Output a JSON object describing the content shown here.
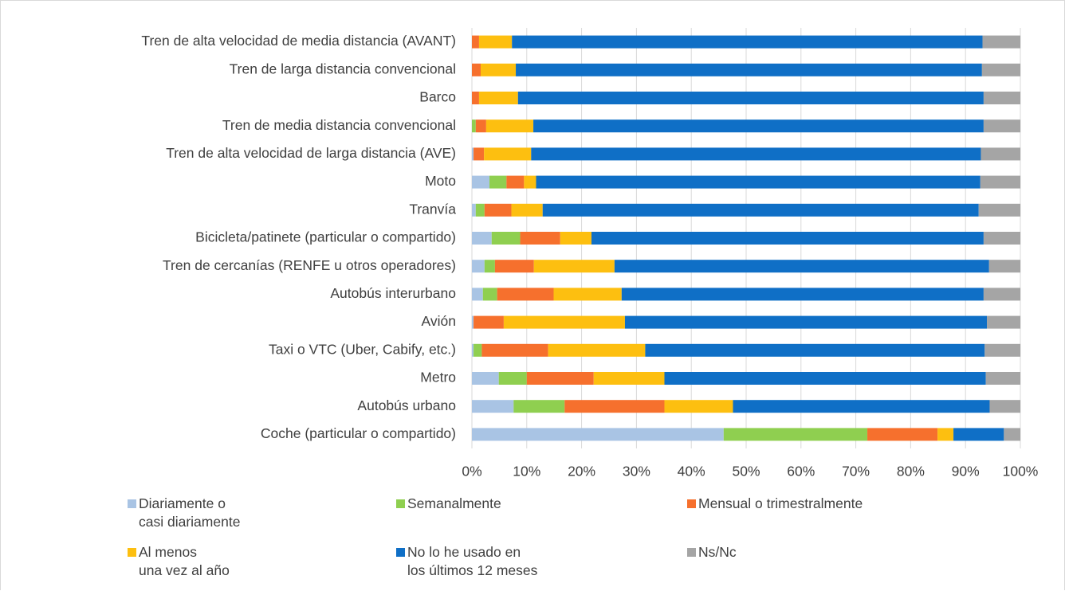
{
  "chart_data": {
    "type": "stacked_barh",
    "categories": [
      "Tren de alta velocidad de media distancia (AVANT)",
      "Tren de larga distancia convencional",
      "Barco",
      "Tren de media distancia convencional",
      "Tren de alta velocidad de larga distancia (AVE)",
      "Moto",
      "Tranvía",
      "Bicicleta/patinete (particular o compartido)",
      "Tren de cercanías (RENFE u otros operadores)",
      "Autobús interurbano",
      "Avión",
      "Taxi o VTC (Uber, Cabify, etc.)",
      "Metro",
      "Autobús urbano",
      "Coche (particular o compartido)"
    ],
    "series": [
      {
        "name": "Diariamente o\ncasi diariamente",
        "color": "#a9c4e4",
        "values": [
          0,
          0,
          0,
          0,
          0.3,
          3.2,
          0.7,
          3.6,
          2.3,
          2.0,
          0.3,
          0.3,
          4.9,
          7.6,
          45.9
        ]
      },
      {
        "name": "Semanalmente",
        "color": "#8fcf50",
        "values": [
          0,
          0,
          0,
          0.7,
          0,
          3.1,
          1.6,
          5.2,
          1.9,
          2.6,
          0,
          1.5,
          5.1,
          9.3,
          26.2
        ]
      },
      {
        "name": "Mensual o trimestralmente",
        "color": "#f6702d",
        "values": [
          1.3,
          1.6,
          1.3,
          1.9,
          1.9,
          3.2,
          4.9,
          7.3,
          7.1,
          10.3,
          5.5,
          12.1,
          12.2,
          18.2,
          12.8
        ]
      },
      {
        "name": "Al menos\nuna vez al año",
        "color": "#fdbf10",
        "values": [
          6.0,
          6.4,
          7.1,
          8.6,
          8.6,
          2.2,
          5.7,
          5.7,
          14.7,
          12.4,
          22.1,
          17.7,
          12.9,
          12.5,
          2.9
        ]
      },
      {
        "name": "No lo he usado en\nlos últimos 12 meses",
        "color": "#0f6fc6",
        "values": [
          85.8,
          85.0,
          84.9,
          82.1,
          82.0,
          81.0,
          79.5,
          71.5,
          68.3,
          66.0,
          66.0,
          61.9,
          58.6,
          46.8,
          9.2
        ]
      },
      {
        "name": "Ns/Nc",
        "color": "#a5a5a5",
        "values": [
          6.9,
          7.0,
          6.7,
          6.7,
          7.2,
          7.3,
          7.6,
          6.7,
          5.7,
          6.7,
          6.1,
          6.5,
          6.3,
          5.6,
          3.0
        ]
      }
    ],
    "xlim": [
      0,
      100
    ],
    "xticks": [
      {
        "value": 0,
        "label": "0%"
      },
      {
        "value": 10,
        "label": "10%"
      },
      {
        "value": 20,
        "label": "20%"
      },
      {
        "value": 30,
        "label": "30%"
      },
      {
        "value": 40,
        "label": "40%"
      },
      {
        "value": 50,
        "label": "50%"
      },
      {
        "value": 60,
        "label": "60%"
      },
      {
        "value": 70,
        "label": "70%"
      },
      {
        "value": 80,
        "label": "80%"
      },
      {
        "value": 90,
        "label": "90%"
      },
      {
        "value": 100,
        "label": "100%"
      }
    ],
    "grid": true,
    "legend": "bottom"
  }
}
